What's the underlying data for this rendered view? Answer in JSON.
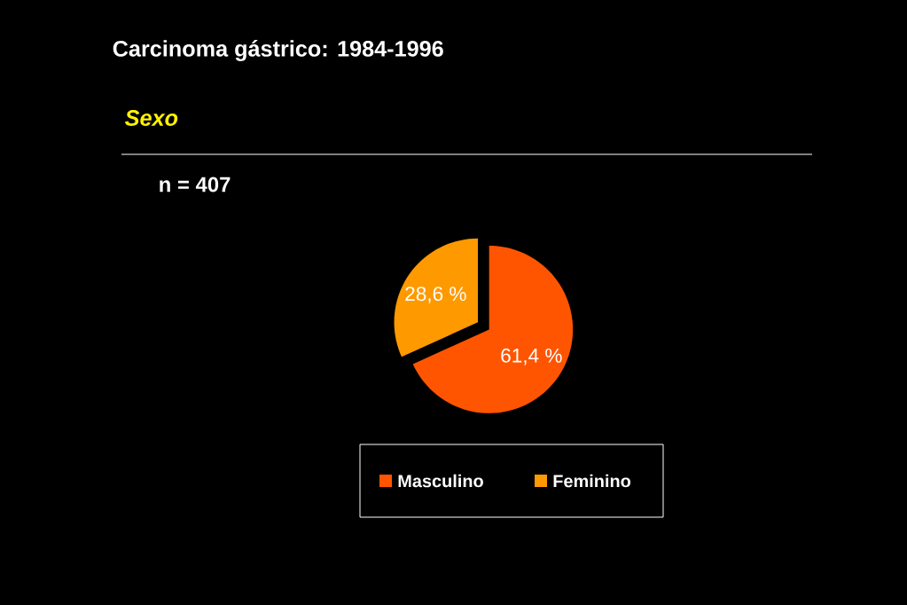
{
  "chart_data": {
    "type": "pie",
    "title": "Carcinoma gástrico: 1984-1996",
    "subtitle": "Sexo",
    "annotations": [
      "n = 407"
    ],
    "categories": [
      "Masculino",
      "Feminino"
    ],
    "values": [
      61.4,
      28.6
    ],
    "value_labels": [
      "61,4 %",
      "28,6 %"
    ],
    "colors": [
      "#ff5500",
      "#ff9900"
    ],
    "legend": "bottom"
  }
}
